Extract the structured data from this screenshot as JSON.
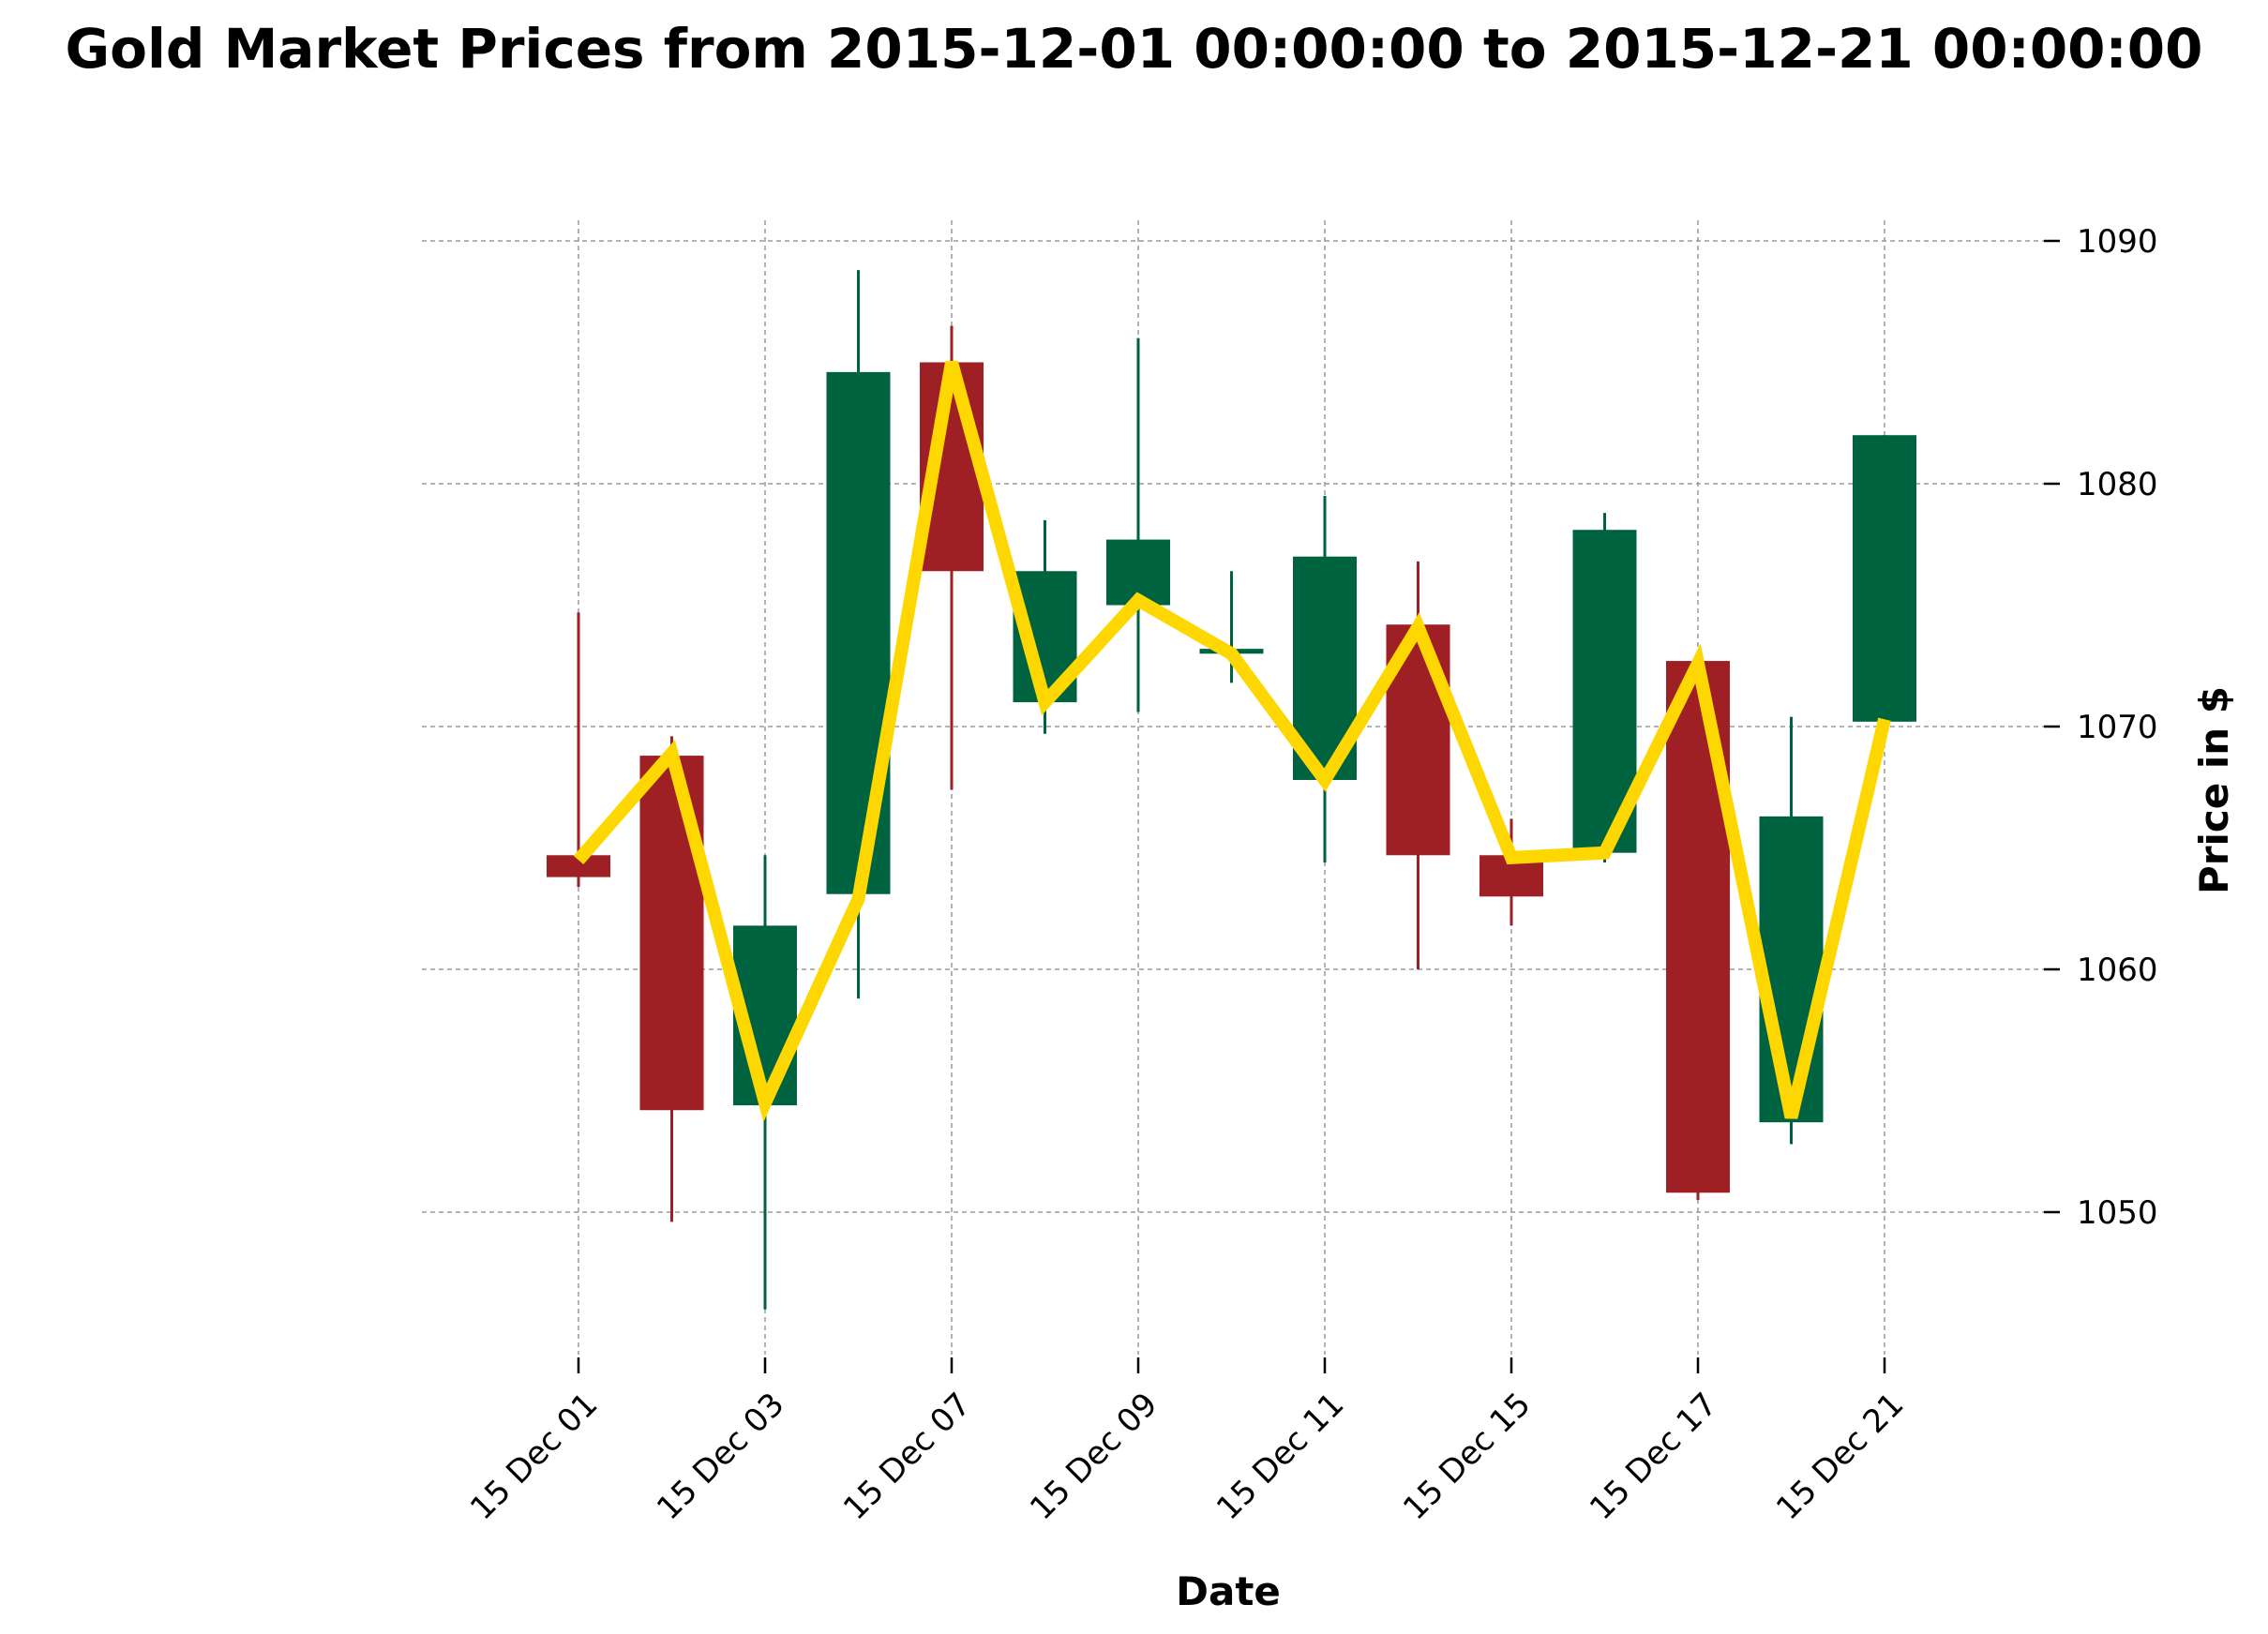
{
  "chart_data": {
    "type": "candlestick",
    "title": "Gold Market Prices from 2015-12-01 00:00:00 to 2015-12-21 00:00:00",
    "xlabel": "Date",
    "ylabel": "Price in $",
    "ylim": [
      1044,
      1091
    ],
    "y_ticks": [
      1050,
      1060,
      1070,
      1080,
      1090
    ],
    "grid": true,
    "y_axis_side": "right",
    "colors": {
      "up": "#006340",
      "down": "#9e1f24",
      "line": "#ffd700",
      "grid": "#9a9a9a"
    },
    "x_tick_labels": [
      "15 Dec 01",
      "15 Dec 03",
      "15 Dec 07",
      "15 Dec 09",
      "15 Dec 11",
      "15 Dec 15",
      "15 Dec 17",
      "15 Dec 21"
    ],
    "candles": [
      {
        "date": "2015-12-01",
        "open": 1064.7,
        "high": 1074.7,
        "low": 1063.4,
        "close": 1063.8
      },
      {
        "date": "2015-12-02",
        "open": 1068.8,
        "high": 1069.6,
        "low": 1049.6,
        "close": 1054.2
      },
      {
        "date": "2015-12-03",
        "open": 1054.4,
        "high": 1064.7,
        "low": 1046.0,
        "close": 1061.8
      },
      {
        "date": "2015-12-04",
        "open": 1063.1,
        "high": 1088.8,
        "low": 1058.8,
        "close": 1084.6
      },
      {
        "date": "2015-12-07",
        "open": 1085.0,
        "high": 1086.5,
        "low": 1067.4,
        "close": 1076.4
      },
      {
        "date": "2015-12-08",
        "open": 1071.0,
        "high": 1078.5,
        "low": 1069.7,
        "close": 1076.4
      },
      {
        "date": "2015-12-09",
        "open": 1075.0,
        "high": 1086.0,
        "low": 1070.6,
        "close": 1077.7
      },
      {
        "date": "2015-12-10",
        "open": 1073.0,
        "high": 1076.4,
        "low": 1071.8,
        "close": 1073.2
      },
      {
        "date": "2015-12-11",
        "open": 1067.8,
        "high": 1079.5,
        "low": 1064.4,
        "close": 1077.0
      },
      {
        "date": "2015-12-14",
        "open": 1074.2,
        "high": 1076.8,
        "low": 1060.0,
        "close": 1064.7
      },
      {
        "date": "2015-12-15",
        "open": 1064.7,
        "high": 1066.2,
        "low": 1061.8,
        "close": 1063.0
      },
      {
        "date": "2015-12-16",
        "open": 1064.8,
        "high": 1078.8,
        "low": 1064.4,
        "close": 1078.1
      },
      {
        "date": "2015-12-17",
        "open": 1072.7,
        "high": 1072.7,
        "low": 1050.5,
        "close": 1050.8
      },
      {
        "date": "2015-12-18",
        "open": 1053.7,
        "high": 1070.4,
        "low": 1052.8,
        "close": 1066.3
      },
      {
        "date": "2015-12-21",
        "open": 1070.2,
        "high": 1082.0,
        "low": 1070.2,
        "close": 1082.0
      }
    ],
    "line_series": {
      "values": [
        1064.5,
        1068.9,
        1054.5,
        1062.9,
        1085.0,
        1071.0,
        1075.2,
        1073.0,
        1067.8,
        1074.1,
        1064.6,
        1064.8,
        1072.6,
        1053.9,
        1070.3
      ]
    }
  }
}
